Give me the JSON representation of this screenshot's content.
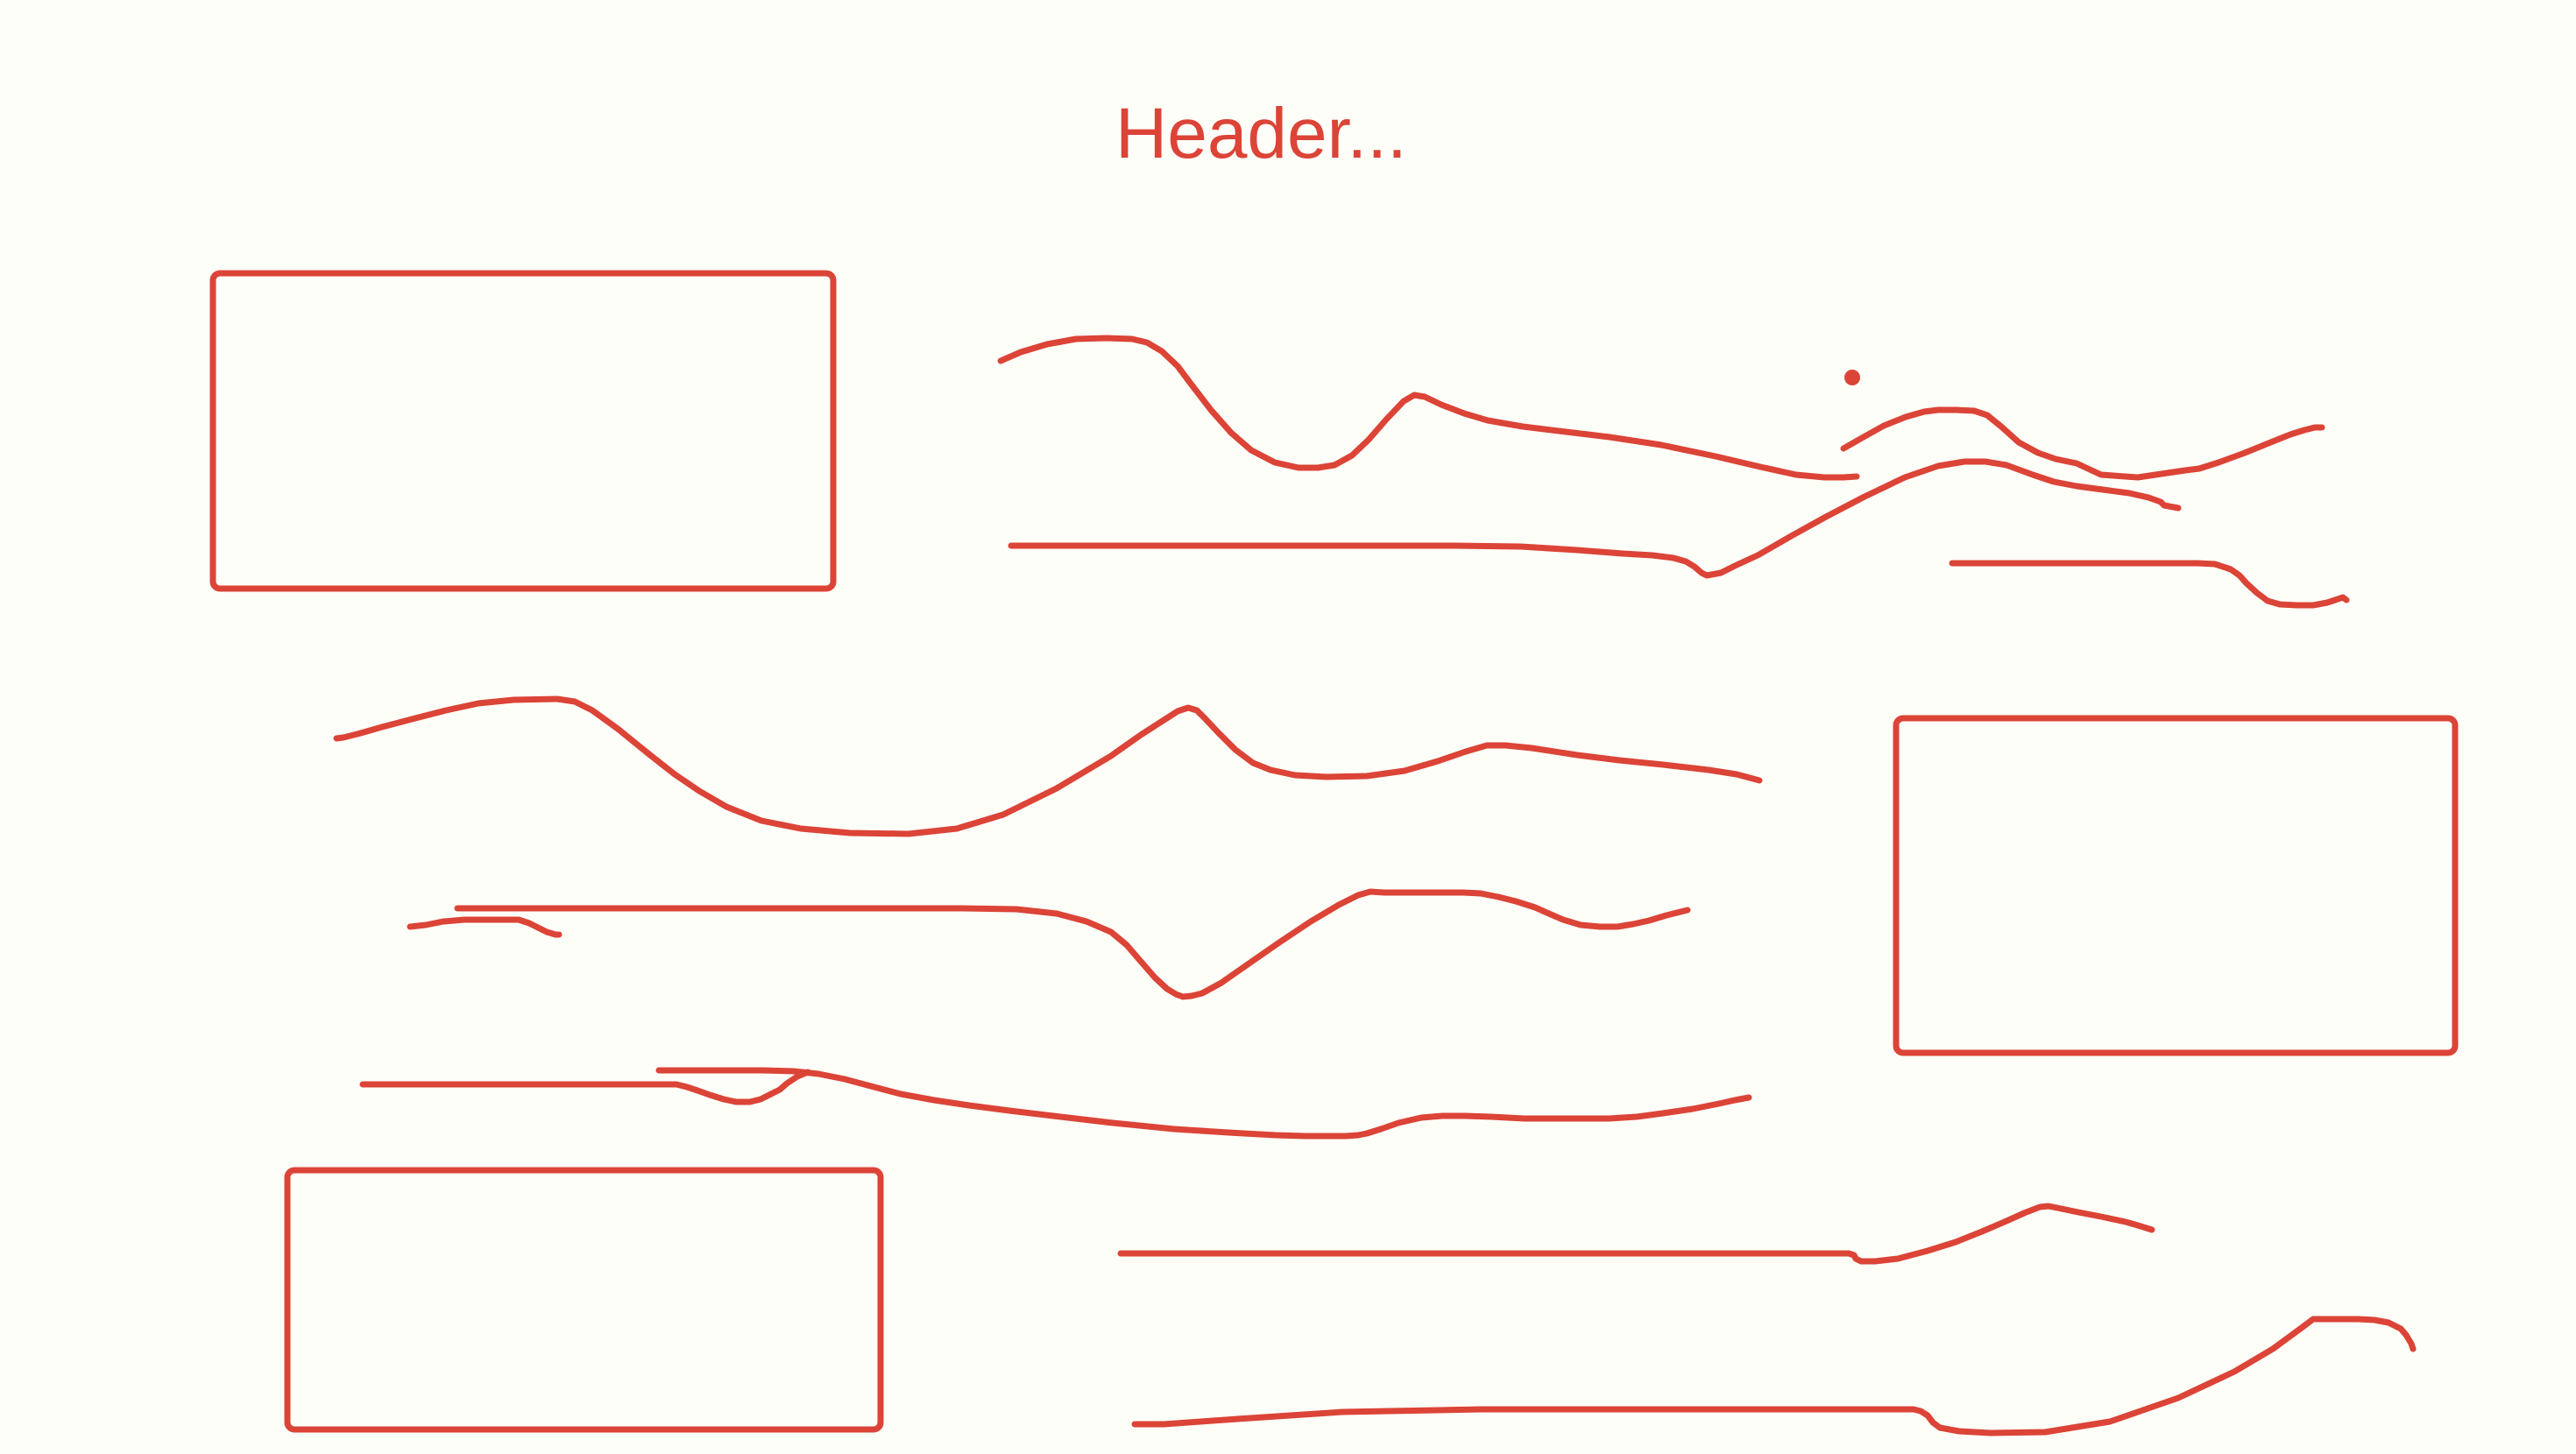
{
  "header": {
    "text": "Header..."
  },
  "palette": {
    "ink": "#db4437",
    "background": "#fefef8"
  }
}
